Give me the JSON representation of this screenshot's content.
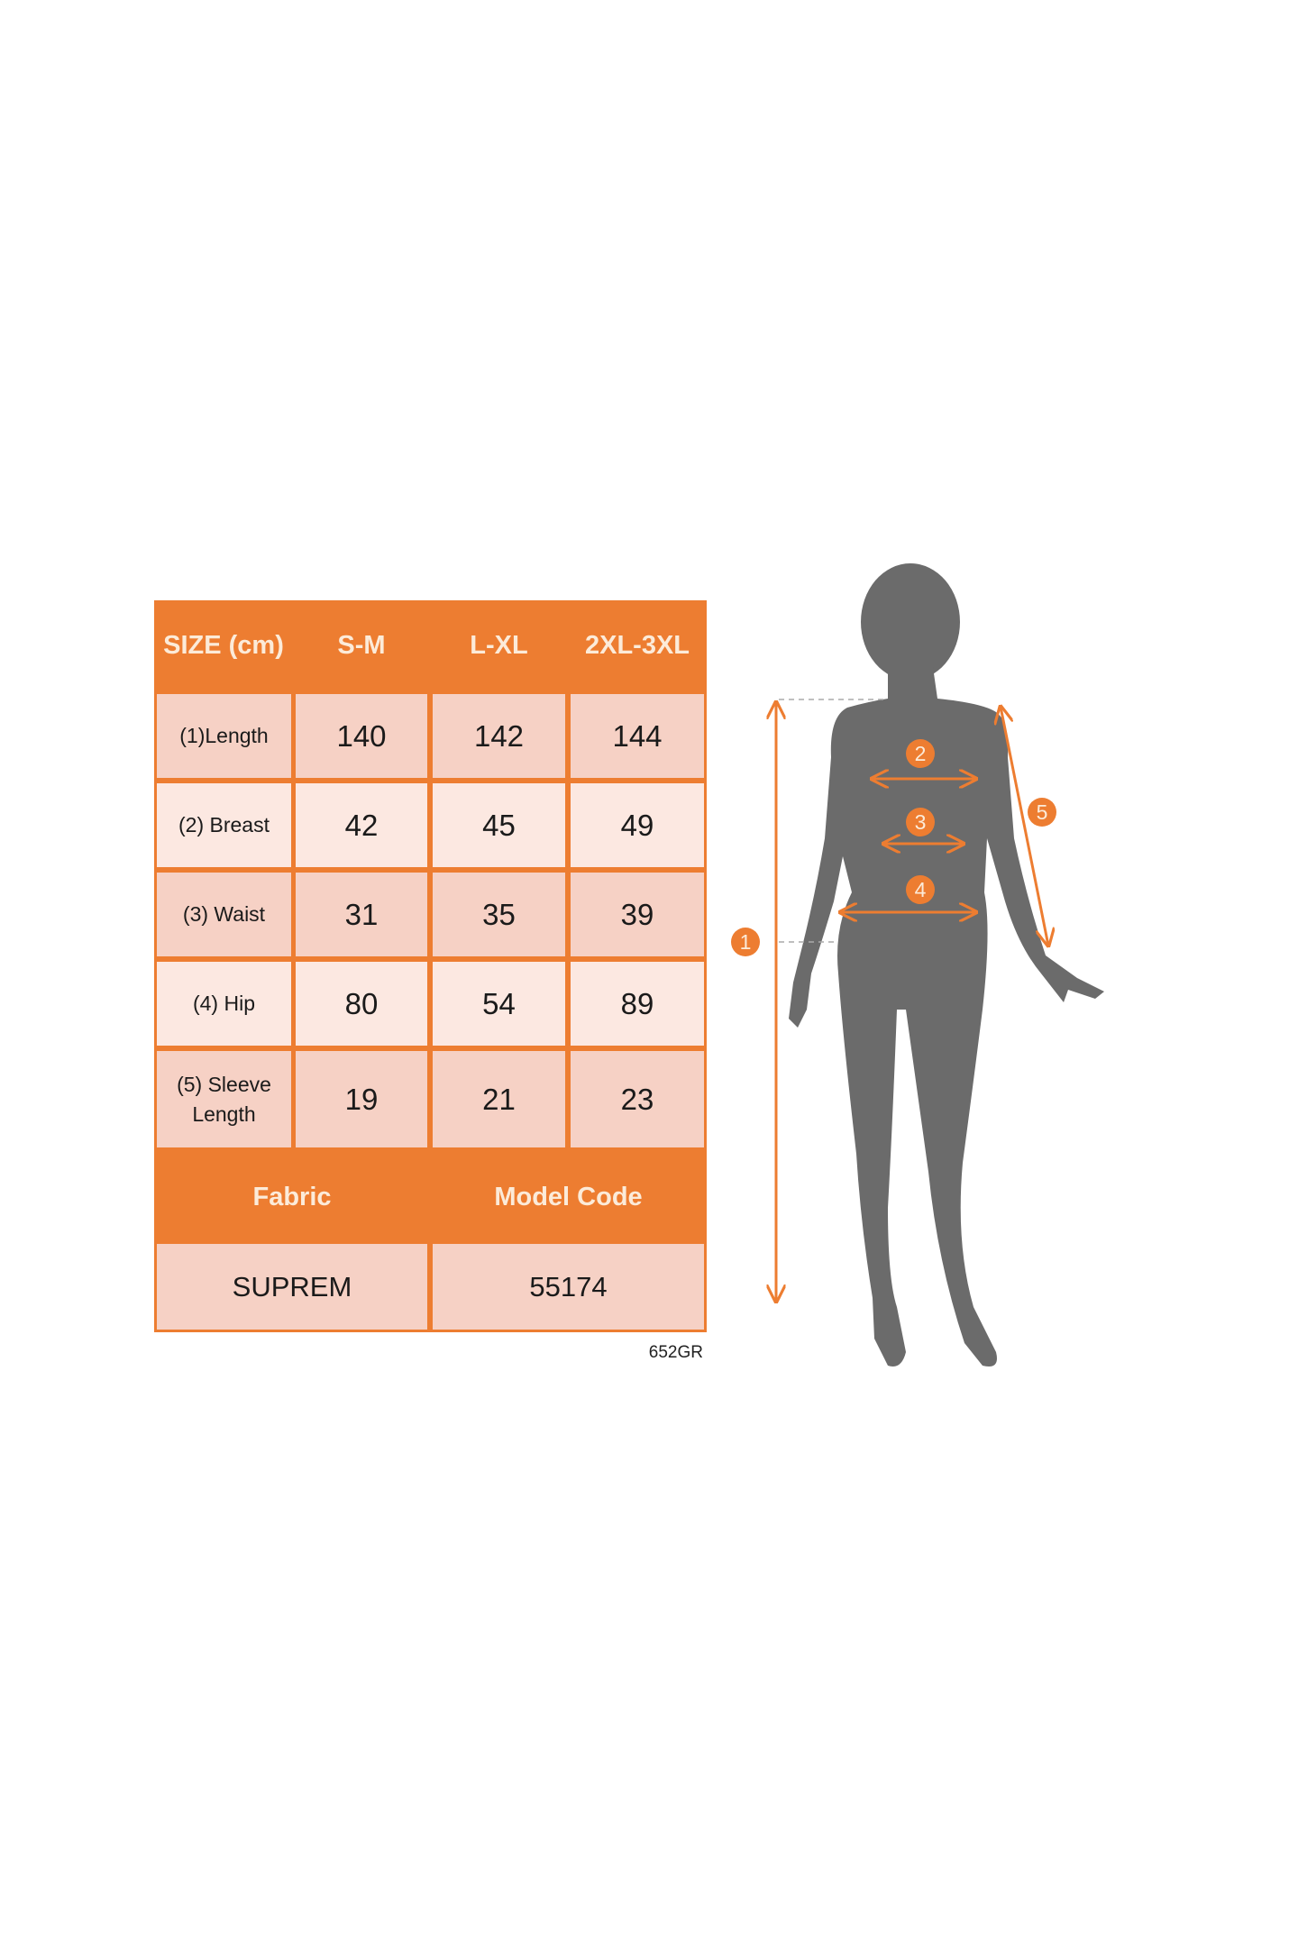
{
  "size_table": {
    "header": {
      "label": "SIZE (cm)",
      "sizes": [
        "S-M",
        "L-XL",
        "2XL-3XL"
      ]
    },
    "rows": [
      {
        "label": "(1)Length",
        "values": [
          "140",
          "142",
          "144"
        ]
      },
      {
        "label": "(2) Breast",
        "values": [
          "42",
          "45",
          "49"
        ]
      },
      {
        "label": "(3) Waist",
        "values": [
          "31",
          "35",
          "39"
        ]
      },
      {
        "label": "(4) Hip",
        "values": [
          "80",
          "54",
          "89"
        ]
      },
      {
        "label": "(5) Sleeve Length",
        "values": [
          "19",
          "21",
          "23"
        ]
      }
    ],
    "footer": {
      "fabric_label": "Fabric",
      "model_code_label": "Model Code",
      "fabric_value": "SUPREM",
      "model_code_value": "55174"
    }
  },
  "code_label": "652GR",
  "figure": {
    "markers": [
      "1",
      "2",
      "3",
      "4",
      "5"
    ],
    "icon": "female-silhouette-icon"
  },
  "colors": {
    "accent": "#ED7D31",
    "cell_dark": "#F6D1C5",
    "cell_light": "#FCE8E1",
    "silhouette": "#6B6B6B"
  }
}
